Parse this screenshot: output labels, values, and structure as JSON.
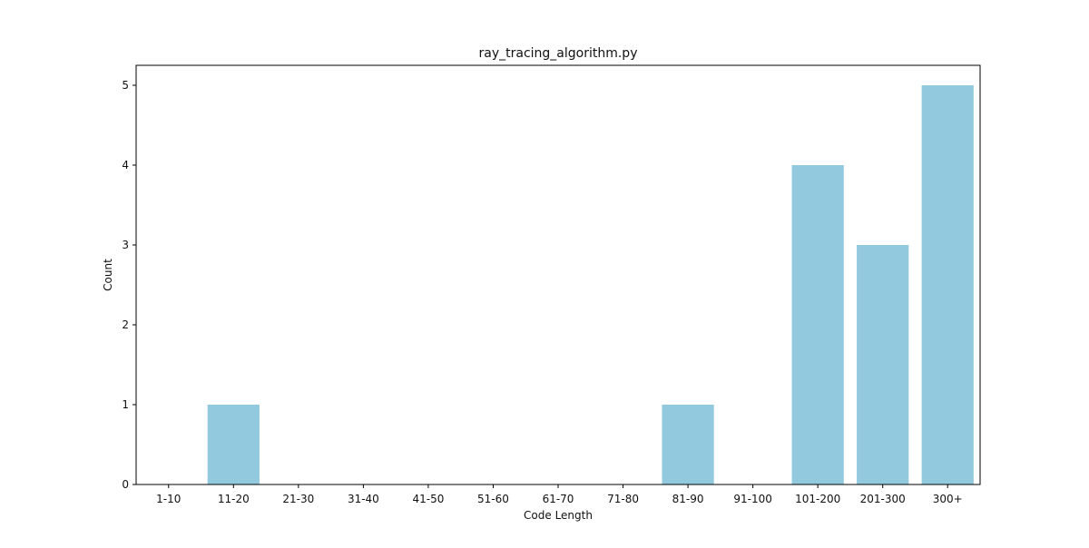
{
  "chart_data": {
    "type": "bar",
    "title": "ray_tracing_algorithm.py",
    "xlabel": "Code Length",
    "ylabel": "Count",
    "categories": [
      "1-10",
      "11-20",
      "21-30",
      "31-40",
      "41-50",
      "51-60",
      "61-70",
      "71-80",
      "81-90",
      "91-100",
      "101-200",
      "201-300",
      "300+"
    ],
    "values": [
      0,
      1,
      0,
      0,
      0,
      0,
      0,
      0,
      1,
      0,
      4,
      3,
      5
    ],
    "ylim": [
      0,
      5.25
    ],
    "yticks": [
      0,
      1,
      2,
      3,
      4,
      5
    ],
    "grid": false,
    "legend": "none",
    "bar_color": "#92c9de",
    "axis_color": "#000000"
  }
}
